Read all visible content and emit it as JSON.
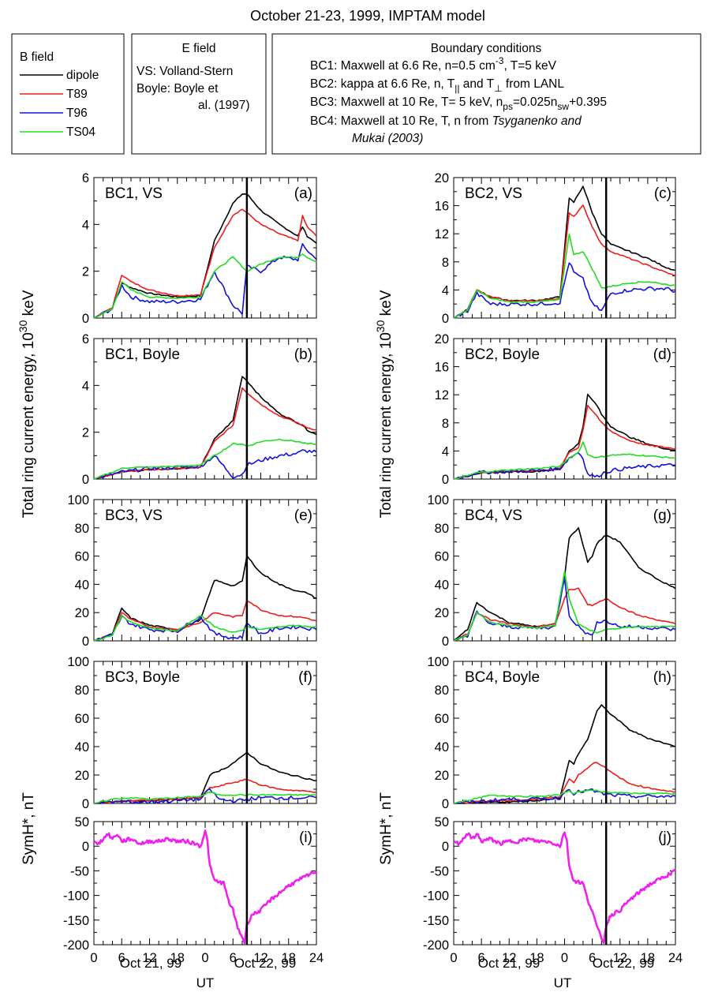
{
  "title": "October 21-23, 1999, IMPTAM model",
  "legend": {
    "heading": "B field",
    "entries": [
      {
        "label": "dipole",
        "color": "#000000"
      },
      {
        "label": "T89",
        "color": "#ee1c1c"
      },
      {
        "label": "T96",
        "color": "#1111dd"
      },
      {
        "label": "TS04",
        "color": "#22dd22"
      }
    ]
  },
  "efield_box": {
    "heading": "E field",
    "line1": "VS: Volland-Stern",
    "line2": "Boyle: Boyle et",
    "line3": "al. (1997)"
  },
  "bc_box": {
    "heading": "Boundary conditions",
    "bc1": "BC1: Maxwell at 6.6 Re, n=0.5 cm",
    "bc1_sup": "-3",
    "bc1_tail": ", T=5 keV",
    "bc2": "BC2: kappa at 6.6 Re, n, T",
    "bc2_sub1": "||",
    "bc2_mid": " and T",
    "bc2_sub2": "⊥",
    "bc2_tail": " from LANL",
    "bc3": "BC3: Maxwell at 10 Re, T= 5 keV, n",
    "bc3_sub1": "ps",
    "bc3_mid": "=0.025n",
    "bc3_sub2": "sw",
    "bc3_tail": "+0.395",
    "bc4": "BC4: Maxwell at 10 Re, T, n from ",
    "bc4_italic": "Tsyganenko and",
    "bc4_line2": "Mukai (2003)"
  },
  "ylabel_energy": "Total ring current energy, 10",
  "ylabel_energy_sup": "30",
  "ylabel_energy_unit": " keV",
  "ylabel_symh": "SymH*, nT",
  "xlabel": "UT",
  "date_label_1": "Oct 21, 99",
  "date_label_2": "Oct 22, 99",
  "x_ticks": [
    "0",
    "6",
    "12",
    "18",
    "0",
    "6",
    "12",
    "18",
    "24"
  ],
  "colors": {
    "dipole": "#000000",
    "t89": "#ee1c1c",
    "t96": "#1111dd",
    "ts04": "#22dd22",
    "symh": "#ee22ee"
  },
  "chart_data": [
    {
      "type": "line",
      "panel": "(a)",
      "label": "BC1, VS",
      "ylim": [
        0,
        6
      ],
      "yticks": [
        0,
        2,
        4,
        6
      ],
      "xlabel": "UT",
      "x": [
        0,
        4,
        6,
        8,
        12,
        18,
        23,
        26,
        30,
        32,
        33,
        36,
        40,
        44,
        45,
        46,
        48
      ],
      "series": [
        {
          "name": "dipole",
          "values": [
            0,
            0.45,
            1.5,
            1.3,
            1.05,
            0.9,
            0.95,
            3.3,
            4.9,
            5.3,
            5.3,
            4.6,
            4.0,
            3.5,
            3.9,
            3.5,
            3.2
          ]
        },
        {
          "name": "T89",
          "values": [
            0,
            0.45,
            1.85,
            1.55,
            1.2,
            0.95,
            1.0,
            3.0,
            4.4,
            4.65,
            4.5,
            4.0,
            3.6,
            3.3,
            4.35,
            3.9,
            3.5
          ]
        },
        {
          "name": "T96",
          "values": [
            0,
            0.4,
            1.4,
            0.9,
            0.7,
            0.7,
            0.8,
            2.0,
            0.55,
            0.2,
            2.2,
            2.0,
            2.6,
            2.5,
            3.1,
            2.9,
            2.5
          ]
        },
        {
          "name": "TS04",
          "values": [
            0,
            0.4,
            1.55,
            1.2,
            0.9,
            0.85,
            0.9,
            2.0,
            2.6,
            2.2,
            2.0,
            2.3,
            2.6,
            2.6,
            2.75,
            2.6,
            2.4
          ]
        }
      ]
    },
    {
      "type": "line",
      "panel": "(b)",
      "label": "BC1, Boyle",
      "ylim": [
        0,
        6
      ],
      "yticks": [
        0,
        2,
        4,
        6
      ],
      "xlabel": "UT",
      "x": [
        0,
        4,
        6,
        8,
        12,
        18,
        23,
        26,
        30,
        32,
        33,
        36,
        40,
        44,
        45,
        46,
        48
      ],
      "series": [
        {
          "name": "dipole",
          "values": [
            0,
            0.2,
            0.3,
            0.35,
            0.4,
            0.45,
            0.5,
            1.7,
            2.5,
            4.4,
            4.2,
            3.5,
            2.8,
            2.4,
            2.3,
            2.1,
            1.9
          ]
        },
        {
          "name": "T89",
          "values": [
            0,
            0.2,
            0.3,
            0.35,
            0.4,
            0.45,
            0.5,
            1.6,
            2.3,
            3.9,
            3.7,
            3.2,
            2.7,
            2.4,
            2.3,
            2.2,
            2.1
          ]
        },
        {
          "name": "T96",
          "values": [
            0,
            0.2,
            0.3,
            0.35,
            0.45,
            0.5,
            0.55,
            1.0,
            0.1,
            0.2,
            0.6,
            0.8,
            1.0,
            1.1,
            1.2,
            1.2,
            1.15
          ]
        },
        {
          "name": "TS04",
          "values": [
            0,
            0.3,
            0.45,
            0.5,
            0.5,
            0.55,
            0.6,
            1.0,
            1.5,
            1.5,
            1.4,
            1.6,
            1.7,
            1.6,
            1.55,
            1.5,
            1.5
          ]
        }
      ]
    },
    {
      "type": "line",
      "panel": "(c)",
      "label": "BC2, VS",
      "ylim": [
        0,
        20
      ],
      "yticks": [
        0,
        4,
        8,
        12,
        16,
        20
      ],
      "xlabel": "UT",
      "x": [
        0,
        3,
        5,
        8,
        12,
        18,
        23,
        25,
        26,
        28,
        30,
        32,
        34,
        38,
        42,
        46,
        48
      ],
      "series": [
        {
          "name": "dipole",
          "values": [
            0,
            1.2,
            4.0,
            3.0,
            2.5,
            2.5,
            3.0,
            17.0,
            16.5,
            18.8,
            15.0,
            12.0,
            10.5,
            9.5,
            8.5,
            7.2,
            6.8
          ]
        },
        {
          "name": "T89",
          "values": [
            0,
            1.2,
            4.0,
            3.0,
            2.5,
            2.4,
            2.8,
            15.0,
            14.5,
            16.0,
            13.0,
            10.5,
            9.5,
            8.5,
            7.5,
            6.5,
            6.0
          ]
        },
        {
          "name": "T96",
          "values": [
            0,
            1.0,
            3.5,
            2.0,
            2.0,
            2.0,
            2.2,
            8.0,
            6.5,
            5.5,
            2.0,
            1.0,
            3.5,
            4.0,
            4.2,
            4.2,
            3.8
          ]
        },
        {
          "name": "TS04",
          "values": [
            0,
            1.1,
            4.0,
            2.8,
            2.3,
            2.3,
            2.6,
            12.0,
            9.0,
            9.5,
            7.0,
            4.3,
            4.5,
            5.0,
            5.2,
            4.8,
            4.6
          ]
        }
      ]
    },
    {
      "type": "line",
      "panel": "(d)",
      "label": "BC2, Boyle",
      "ylim": [
        0,
        20
      ],
      "yticks": [
        0,
        4,
        8,
        12,
        16,
        20
      ],
      "xlabel": "UT",
      "x": [
        0,
        3,
        5,
        8,
        12,
        18,
        23,
        25,
        27,
        28,
        29,
        31,
        32,
        34,
        38,
        42,
        46,
        48
      ],
      "series": [
        {
          "name": "dipole",
          "values": [
            0,
            0.5,
            0.8,
            0.9,
            1.0,
            1.1,
            1.4,
            4.0,
            5.0,
            7.5,
            12.0,
            10.5,
            9.2,
            7.5,
            6.0,
            5.0,
            4.3,
            4.1
          ]
        },
        {
          "name": "T89",
          "values": [
            0,
            0.5,
            0.9,
            1.0,
            1.1,
            1.2,
            1.5,
            3.8,
            4.5,
            7.0,
            10.5,
            9.0,
            8.0,
            6.8,
            5.5,
            4.8,
            4.5,
            4.3
          ]
        },
        {
          "name": "T96",
          "values": [
            0,
            0.5,
            0.9,
            1.0,
            1.1,
            1.2,
            1.5,
            3.0,
            3.8,
            3.0,
            0.7,
            0.3,
            0.8,
            1.2,
            1.6,
            1.8,
            2.0,
            1.9
          ]
        },
        {
          "name": "TS04",
          "values": [
            0,
            0.5,
            0.9,
            1.1,
            1.3,
            1.5,
            1.8,
            3.0,
            3.8,
            5.3,
            3.5,
            3.0,
            3.2,
            3.4,
            3.5,
            3.3,
            3.1,
            3.0
          ]
        }
      ]
    },
    {
      "type": "line",
      "panel": "(e)",
      "label": "BC3, VS",
      "ylim": [
        0,
        100
      ],
      "yticks": [
        0,
        20,
        40,
        60,
        80,
        100
      ],
      "xlabel": "UT",
      "x": [
        0,
        4,
        6,
        8,
        12,
        18,
        23,
        26,
        30,
        32,
        33,
        36,
        40,
        44,
        46,
        48
      ],
      "series": [
        {
          "name": "dipole",
          "values": [
            0,
            5,
            23,
            16,
            11,
            8,
            15,
            43,
            39,
            42,
            60,
            48,
            40,
            35,
            34,
            30
          ]
        },
        {
          "name": "T89",
          "values": [
            0,
            5,
            20,
            15,
            10,
            8,
            13,
            20,
            17,
            18,
            29,
            22,
            18,
            17,
            16,
            14
          ]
        },
        {
          "name": "T96",
          "values": [
            0,
            4,
            17,
            12,
            8,
            7,
            17,
            5,
            2,
            3,
            13,
            5,
            9,
            10,
            9,
            8
          ]
        },
        {
          "name": "TS04",
          "values": [
            0,
            4,
            18,
            13,
            9,
            7,
            18,
            10,
            6,
            7,
            10,
            8,
            10,
            11,
            10,
            10
          ]
        }
      ]
    },
    {
      "type": "line",
      "panel": "(f)",
      "label": "BC3, Boyle",
      "ylim": [
        0,
        100
      ],
      "yticks": [
        0,
        20,
        40,
        60,
        80,
        100
      ],
      "xlabel": "UT",
      "x": [
        0,
        4,
        8,
        12,
        18,
        23,
        25,
        27,
        29,
        32,
        33,
        36,
        40,
        44,
        48
      ],
      "series": [
        {
          "name": "dipole",
          "values": [
            0,
            1,
            2,
            2,
            3,
            4,
            20,
            23,
            26,
            33,
            36,
            28,
            22,
            19,
            16
          ]
        },
        {
          "name": "T89",
          "values": [
            0,
            1,
            2,
            2,
            3,
            4,
            11,
            12,
            14,
            16,
            17,
            13,
            10,
            9,
            8
          ]
        },
        {
          "name": "T96",
          "values": [
            0,
            1,
            1,
            1,
            2,
            3,
            10,
            3,
            2,
            2,
            3,
            4,
            4,
            4,
            4
          ]
        },
        {
          "name": "TS04",
          "values": [
            0,
            3,
            4,
            3,
            4,
            5,
            8,
            6,
            6,
            6,
            6,
            6,
            6,
            6,
            6
          ]
        }
      ]
    },
    {
      "type": "line",
      "panel": "(g)",
      "label": "BC4, VS",
      "ylim": [
        0,
        100
      ],
      "yticks": [
        0,
        20,
        40,
        60,
        80,
        100
      ],
      "xlabel": "UT",
      "x": [
        0,
        3,
        5,
        8,
        12,
        18,
        22,
        24,
        25,
        27,
        29,
        30,
        31,
        33,
        36,
        40,
        44,
        48
      ],
      "series": [
        {
          "name": "dipole",
          "values": [
            0,
            8,
            27,
            20,
            13,
            10,
            12,
            45,
            73,
            80,
            56,
            60,
            69,
            75,
            70,
            52,
            44,
            37
          ]
        },
        {
          "name": "T89",
          "values": [
            0,
            5,
            20,
            15,
            12,
            10,
            12,
            30,
            36,
            37,
            26,
            25,
            27,
            30,
            24,
            18,
            15,
            12
          ]
        },
        {
          "name": "T96",
          "values": [
            0,
            4,
            20,
            12,
            10,
            9,
            10,
            45,
            18,
            10,
            5,
            3,
            14,
            14,
            10,
            10,
            9,
            8
          ]
        },
        {
          "name": "TS04",
          "values": [
            0,
            4,
            20,
            13,
            11,
            9,
            11,
            49,
            30,
            12,
            8,
            7,
            6,
            8,
            9,
            10,
            10,
            10
          ]
        }
      ]
    },
    {
      "type": "line",
      "panel": "(h)",
      "label": "BC4, Boyle",
      "ylim": [
        0,
        100
      ],
      "yticks": [
        0,
        20,
        40,
        60,
        80,
        100
      ],
      "xlabel": "UT",
      "x": [
        0,
        4,
        8,
        12,
        18,
        23,
        25,
        26,
        27,
        29,
        30,
        31,
        32,
        34,
        38,
        42,
        46,
        48
      ],
      "series": [
        {
          "name": "dipole",
          "values": [
            0,
            0,
            1,
            1,
            2,
            4,
            30,
            28,
            35,
            45,
            55,
            65,
            69,
            63,
            52,
            46,
            42,
            40
          ]
        },
        {
          "name": "T89",
          "values": [
            0,
            1,
            2,
            2,
            3,
            5,
            17,
            15,
            20,
            25,
            28,
            29,
            27,
            22,
            14,
            11,
            9,
            8
          ]
        },
        {
          "name": "T96",
          "values": [
            0,
            1,
            2,
            3,
            3,
            4,
            11,
            7,
            8,
            9,
            9,
            8,
            7,
            6,
            5,
            5,
            5,
            5
          ]
        },
        {
          "name": "TS04",
          "values": [
            0,
            3,
            6,
            5,
            5,
            6,
            9,
            7,
            8,
            9,
            9,
            9,
            8,
            8,
            7,
            7,
            7,
            7
          ]
        }
      ]
    },
    {
      "type": "line",
      "panel": "(i)",
      "ylim": [
        -200,
        50
      ],
      "yticks": [
        -200,
        -150,
        -100,
        -50,
        0,
        50
      ],
      "ylabel": "SymH*, nT",
      "xlabel": "UT",
      "x": [
        0,
        1,
        2,
        3,
        4,
        5,
        6,
        8,
        10,
        12,
        14,
        16,
        18,
        20,
        22,
        23,
        24,
        24.5,
        25,
        26,
        28,
        29,
        30,
        31,
        32,
        32.5,
        33,
        34,
        36,
        38,
        40,
        42,
        44,
        46,
        48
      ],
      "series": [
        {
          "name": "SymH*",
          "values": [
            10,
            5,
            15,
            25,
            15,
            25,
            10,
            15,
            5,
            10,
            10,
            15,
            10,
            10,
            5,
            0,
            30,
            10,
            -40,
            -70,
            -75,
            -110,
            -130,
            -165,
            -185,
            -195,
            -160,
            -140,
            -130,
            -110,
            -95,
            -80,
            -70,
            -60,
            -50
          ]
        }
      ]
    },
    {
      "type": "line",
      "panel": "(j)",
      "ylim": [
        -200,
        50
      ],
      "yticks": [
        -200,
        -150,
        -100,
        -50,
        0,
        50
      ],
      "ylabel": "SymH*, nT",
      "xlabel": "UT",
      "x": [
        0,
        1,
        2,
        3,
        4,
        5,
        6,
        8,
        10,
        12,
        14,
        16,
        18,
        20,
        22,
        23,
        24,
        24.5,
        25,
        26,
        28,
        29,
        30,
        31,
        32,
        32.5,
        33,
        34,
        36,
        38,
        40,
        42,
        44,
        46,
        48
      ],
      "series": [
        {
          "name": "SymH*",
          "values": [
            10,
            5,
            15,
            25,
            15,
            25,
            10,
            15,
            5,
            10,
            10,
            15,
            10,
            10,
            5,
            0,
            30,
            10,
            -40,
            -70,
            -75,
            -110,
            -130,
            -165,
            -185,
            -195,
            -160,
            -140,
            -130,
            -110,
            -95,
            -80,
            -70,
            -60,
            -50
          ]
        }
      ]
    }
  ]
}
